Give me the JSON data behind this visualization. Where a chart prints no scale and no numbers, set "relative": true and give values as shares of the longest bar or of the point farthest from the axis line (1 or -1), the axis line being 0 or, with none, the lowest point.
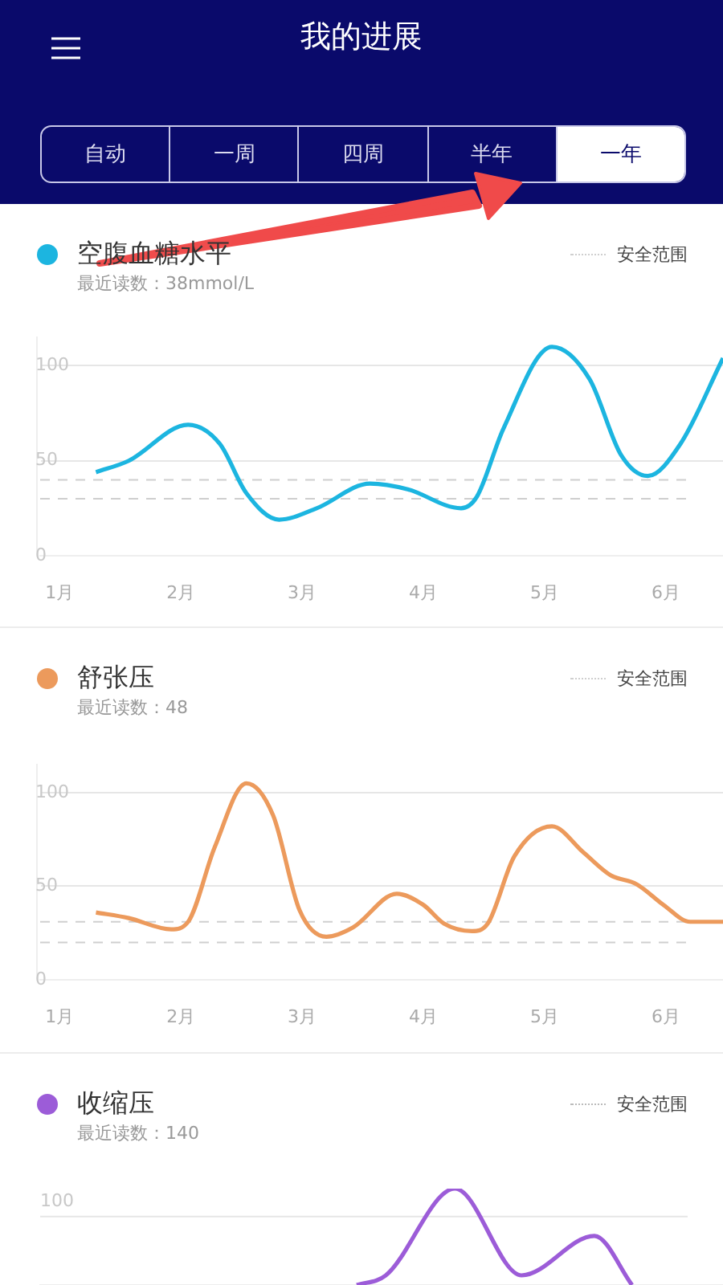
{
  "chart_data": [
    {
      "type": "other",
      "title": "我的进展",
      "annotations": [
        "自动",
        "一周",
        "四周",
        "半年",
        "一年"
      ]
    },
    {
      "type": "line",
      "title": "空腹血糖水平",
      "subtitle": "最近读数：38mmol/L",
      "legend": "top right",
      "grid": "y",
      "marker": "none",
      "line_style": "solid",
      "series": [
        {
          "color": "#1cb5e0",
          "x": [
            1.3,
            1.57,
            2.06,
            2.32,
            2.54,
            2.81,
            3.12,
            3.56,
            3.87,
            4.31,
            4.44,
            4.66,
            5.06,
            5.37,
            5.63,
            5.85,
            6.12,
            6.47
          ],
          "values": [
            44,
            50,
            69,
            59,
            33,
            19,
            25,
            38,
            35,
            25,
            31,
            67,
            110,
            93,
            53,
            42,
            59,
            104
          ]
        }
      ],
      "xlim": [
        0.84,
        6.47
      ],
      "xticks": [
        {
          "value": 1,
          "label": "1月"
        },
        {
          "value": 2,
          "label": "2月"
        },
        {
          "value": 3,
          "label": "3月"
        },
        {
          "value": 4,
          "label": "4月"
        },
        {
          "value": 5,
          "label": "5月"
        },
        {
          "value": 6,
          "label": "6月"
        }
      ],
      "ylim": [
        0,
        115
      ],
      "yticks": [
        0,
        50,
        100
      ],
      "ref_lines": [
        {
          "axis": "y",
          "value": 40,
          "label": "安全范围",
          "color": "#cfcfcf",
          "line_style": "dashed"
        },
        {
          "axis": "y",
          "value": 30,
          "color": "#cfcfcf",
          "line_style": "dashed"
        }
      ]
    },
    {
      "type": "line",
      "title": "舒张压",
      "subtitle": "最近读数：48",
      "legend": "top right",
      "grid": "y",
      "marker": "none",
      "line_style": "solid",
      "series": [
        {
          "color": "#ec9a5c",
          "x": [
            1.3,
            1.57,
            1.92,
            2.06,
            2.28,
            2.54,
            2.76,
            2.98,
            3.2,
            3.42,
            3.78,
            4.0,
            4.17,
            4.4,
            4.53,
            4.75,
            5.06,
            5.32,
            5.54,
            5.76,
            5.98,
            6.2,
            6.47
          ],
          "values": [
            36,
            33,
            27,
            31,
            71,
            105,
            88,
            37,
            23,
            28,
            46,
            40,
            30,
            26,
            30,
            66,
            82,
            68,
            56,
            51,
            40,
            31,
            31
          ]
        }
      ],
      "xlim": [
        0.84,
        6.47
      ],
      "xticks": [
        {
          "value": 1,
          "label": "1月"
        },
        {
          "value": 2,
          "label": "2月"
        },
        {
          "value": 3,
          "label": "3月"
        },
        {
          "value": 4,
          "label": "4月"
        },
        {
          "value": 5,
          "label": "5月"
        },
        {
          "value": 6,
          "label": "6月"
        }
      ],
      "ylim": [
        0,
        115
      ],
      "yticks": [
        0,
        50,
        100
      ],
      "ref_lines": [
        {
          "axis": "y",
          "value": 31,
          "label": "安全范围",
          "color": "#cfcfcf",
          "line_style": "dashed"
        },
        {
          "axis": "y",
          "value": 20,
          "color": "#cfcfcf",
          "line_style": "dashed"
        }
      ]
    },
    {
      "type": "line",
      "title": "收缩压",
      "subtitle": "最近读数：140",
      "marker": "none",
      "line_style": "solid",
      "annotations": [
        "100",
        "安全范围"
      ],
      "series": [
        {
          "color": "#9c5cd8",
          "x": [
            3.45,
            3.69,
            4.26,
            4.81,
            5.41,
            5.72
          ],
          "values": [
            0,
            0.1,
            1,
            0.1,
            0.51,
            0
          ]
        }
      ],
      "xlim": [
        0.84,
        6.47
      ],
      "relative": true,
      "ref_lines": [
        {
          "axis": "y",
          "value": 0.71,
          "color": "#e6e6e6",
          "line_style": "solid"
        }
      ]
    }
  ]
}
